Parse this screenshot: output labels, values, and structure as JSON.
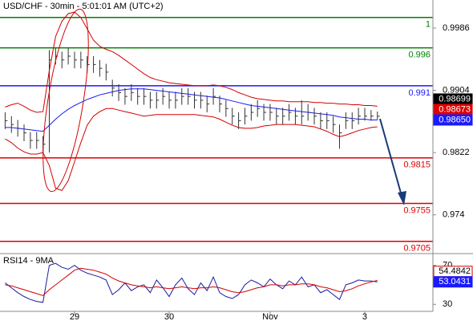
{
  "chart_data": [
    {
      "type": "ohlc",
      "title": "USD/CHF - 30min - 5:01:01 AM (UTC+2)",
      "categories": [
        null,
        null,
        null,
        null,
        null,
        null,
        null,
        null,
        null,
        null,
        null,
        "29",
        null,
        null,
        null,
        null,
        null,
        null,
        null,
        null,
        null,
        null,
        null,
        null,
        null,
        null,
        "30",
        null,
        null,
        null,
        null,
        null,
        null,
        null,
        null,
        null,
        null,
        null,
        null,
        null,
        null,
        null,
        "Nov",
        null,
        null,
        null,
        null,
        null,
        null,
        null,
        null,
        null,
        null,
        null,
        null,
        null,
        null,
        "3",
        null,
        null
      ],
      "high": [
        0.9875,
        0.987,
        0.9865,
        0.9859,
        0.9849,
        0.9849,
        0.9844,
        0.9957,
        0.996,
        0.9955,
        0.996,
        0.9955,
        0.9955,
        0.9949,
        0.9949,
        0.9944,
        0.9939,
        0.9918,
        0.9912,
        0.9907,
        0.9912,
        0.9907,
        0.9907,
        0.9902,
        0.9902,
        0.9907,
        0.9902,
        0.9902,
        0.9907,
        0.9907,
        0.9902,
        0.9902,
        0.9897,
        0.9907,
        0.9897,
        0.9891,
        0.9881,
        0.9875,
        0.9881,
        0.9886,
        0.9891,
        0.9886,
        0.9886,
        0.9881,
        0.9881,
        0.9886,
        0.9881,
        0.9891,
        0.9886,
        0.9881,
        0.9875,
        0.9875,
        0.987,
        0.9859,
        0.9875,
        0.9875,
        0.9881,
        0.9881,
        0.9878,
        0.9876
      ],
      "low": [
        0.9853,
        0.9848,
        0.9843,
        0.9837,
        0.9827,
        0.9827,
        0.9822,
        0.9822,
        0.9938,
        0.9933,
        0.9938,
        0.9933,
        0.9933,
        0.9927,
        0.9927,
        0.9922,
        0.9917,
        0.9896,
        0.989,
        0.9885,
        0.989,
        0.9885,
        0.9885,
        0.988,
        0.988,
        0.9885,
        0.988,
        0.988,
        0.9885,
        0.9885,
        0.988,
        0.988,
        0.9875,
        0.9885,
        0.9875,
        0.9869,
        0.9859,
        0.9853,
        0.9859,
        0.9864,
        0.9869,
        0.9864,
        0.9864,
        0.9859,
        0.9859,
        0.9864,
        0.9859,
        0.9859,
        0.9864,
        0.9859,
        0.9853,
        0.9853,
        0.9848,
        0.9827,
        0.9853,
        0.9853,
        0.9859,
        0.9864,
        0.9864,
        0.9865
      ],
      "close": [
        0.9864,
        0.9859,
        0.9854,
        0.9848,
        0.9838,
        0.9838,
        0.9833,
        0.9944,
        0.9949,
        0.9944,
        0.9949,
        0.9944,
        0.9944,
        0.9938,
        0.9938,
        0.9933,
        0.9928,
        0.9907,
        0.9901,
        0.9896,
        0.9901,
        0.9896,
        0.9896,
        0.9891,
        0.9891,
        0.9896,
        0.9891,
        0.9891,
        0.9896,
        0.9896,
        0.9891,
        0.9891,
        0.9886,
        0.9896,
        0.9886,
        0.988,
        0.987,
        0.9864,
        0.987,
        0.9875,
        0.988,
        0.9875,
        0.9875,
        0.987,
        0.987,
        0.9875,
        0.987,
        0.987,
        0.9875,
        0.987,
        0.9864,
        0.9864,
        0.9859,
        0.9848,
        0.9864,
        0.9864,
        0.987,
        0.987,
        0.987,
        0.98699
      ],
      "bar_color": "#333333",
      "series": [
        {
          "color": "#1a1aff",
          "values": [
            0.9855,
            0.9855,
            0.9854,
            0.9853,
            0.9852,
            0.9851,
            0.985,
            0.9858,
            0.9866,
            0.9873,
            0.9879,
            0.9884,
            0.9888,
            0.9892,
            0.9895,
            0.9898,
            0.99,
            0.9902,
            0.9904,
            0.9905,
            0.9906,
            0.9906,
            0.9906,
            0.9905,
            0.9904,
            0.9903,
            0.9902,
            0.9901,
            0.99,
            0.9899,
            0.9898,
            0.9897,
            0.9896,
            0.9895,
            0.9894,
            0.9892,
            0.989,
            0.9888,
            0.9886,
            0.9884,
            0.9883,
            0.9882,
            0.9881,
            0.988,
            0.9879,
            0.9878,
            0.9877,
            0.9876,
            0.9875,
            0.9874,
            0.9873,
            0.9872,
            0.9871,
            0.9869,
            0.9868,
            0.9867,
            0.9866,
            0.9866,
            0.9865,
            0.9865
          ]
        },
        {
          "color": "#d40000",
          "values": [
            0.9882,
            0.9885,
            0.9887,
            0.9883,
            0.9878,
            0.9875,
            0.9876,
            0.993,
            0.9975,
            0.9995,
            1.0005,
            1.0007,
            1.0,
            0.9985,
            0.997,
            0.9962,
            0.9958,
            0.9955,
            0.995,
            0.9944,
            0.9938,
            0.9932,
            0.9926,
            0.9921,
            0.9918,
            0.9916,
            0.9914,
            0.9913,
            0.9912,
            0.9911,
            0.991,
            0.991,
            0.991,
            0.9911,
            0.991,
            0.9908,
            0.9905,
            0.9901,
            0.9898,
            0.9895,
            0.9893,
            0.9892,
            0.9891,
            0.989,
            0.989,
            0.9889,
            0.9889,
            0.9889,
            0.9889,
            0.9888,
            0.9888,
            0.9887,
            0.9887,
            0.9886,
            0.9886,
            0.9885,
            0.9885,
            0.9884,
            0.9884,
            0.9883
          ]
        },
        {
          "color": "#d40000",
          "values": [
            0.984,
            0.9835,
            0.9828,
            0.9823,
            0.982,
            0.982,
            0.9822,
            0.9805,
            0.9775,
            0.9772,
            0.9785,
            0.981,
            0.9835,
            0.9858,
            0.987,
            0.9876,
            0.988,
            0.988,
            0.9878,
            0.9876,
            0.9874,
            0.9872,
            0.987,
            0.9871,
            0.9872,
            0.9872,
            0.9872,
            0.9872,
            0.9872,
            0.9872,
            0.9872,
            0.9871,
            0.987,
            0.9869,
            0.9866,
            0.9862,
            0.9858,
            0.9855,
            0.9854,
            0.9854,
            0.9855,
            0.9857,
            0.9858,
            0.9859,
            0.9859,
            0.9859,
            0.9859,
            0.9858,
            0.9857,
            0.9856,
            0.9853,
            0.985,
            0.9846,
            0.9843,
            0.9845,
            0.9848,
            0.9851,
            0.9853,
            0.9855,
            0.9856
          ]
        }
      ],
      "levels": [
        {
          "value": 1,
          "color": "#008000"
        },
        {
          "value": 0.996,
          "color": "#008000"
        },
        {
          "value": 0.991,
          "color": "#1a1aff"
        },
        {
          "value": 0.9815,
          "color": "#e00000"
        },
        {
          "value": 0.9755,
          "color": "#e00000"
        },
        {
          "value": 0.9705,
          "color": "#e00000"
        }
      ],
      "badges": [
        {
          "value": 0.98699,
          "label": "0.98699",
          "color": "#000000"
        },
        {
          "value": 0.98673,
          "label": "0.98673",
          "color": "#e00000"
        },
        {
          "value": 0.9865,
          "label": "0.98650",
          "color": "#1a1aff"
        }
      ],
      "ylim": [
        0.969,
        1.0023
      ],
      "yticks": [
        0.9986,
        0.9904,
        0.9822,
        0.974
      ]
    },
    {
      "type": "line",
      "title": "RSI14 - 9MA",
      "series": [
        {
          "color": "#1a1aa0",
          "values": [
            52,
            47,
            42,
            38,
            35,
            33,
            32,
            70,
            72,
            68,
            66,
            70,
            65,
            62,
            60,
            58,
            55,
            40,
            45,
            52,
            44,
            48,
            50,
            42,
            55,
            47,
            38,
            50,
            57,
            46,
            40,
            52,
            44,
            58,
            42,
            38,
            36,
            40,
            50,
            55,
            52,
            48,
            56,
            50,
            46,
            54,
            50,
            58,
            48,
            50,
            42,
            45,
            40,
            35,
            50,
            52,
            55,
            54,
            54,
            53.0431
          ]
        },
        {
          "color": "#d40000",
          "values": [
            50,
            49,
            47,
            45,
            43,
            41,
            39,
            45,
            50,
            55,
            60,
            65,
            67,
            66,
            65,
            63,
            61,
            57,
            54,
            52,
            50,
            49,
            48,
            47,
            48,
            47,
            46,
            47,
            48,
            47,
            46,
            47,
            47,
            48,
            47,
            45,
            43,
            42,
            43,
            45,
            47,
            48,
            50,
            50,
            49,
            50,
            50,
            51,
            51,
            50,
            48,
            47,
            45,
            43,
            44,
            46,
            49,
            51,
            53,
            54.4842
          ]
        }
      ],
      "badges": [
        {
          "value": 54.4842,
          "color": "#d40000"
        },
        {
          "value": 53.0431,
          "color": "#1a1aff"
        }
      ],
      "ylim": [
        22.8,
        80.4
      ],
      "yticks": [
        70,
        30
      ]
    }
  ]
}
